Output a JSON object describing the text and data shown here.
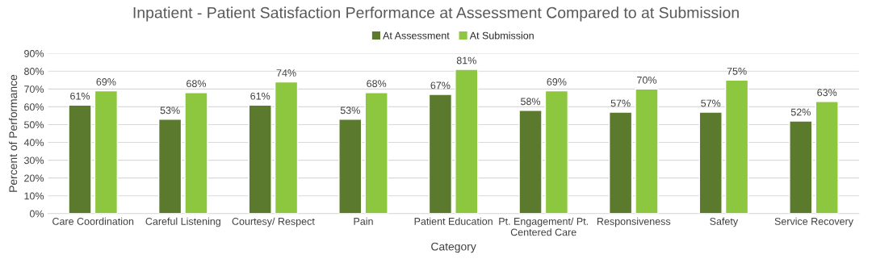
{
  "chart_data": {
    "type": "bar",
    "title": "Inpatient - Patient Satisfaction Performance at Assessment Compared to at Submission",
    "xlabel": "Category",
    "ylabel": "Percent of Performance",
    "categories": [
      "Care Coordination",
      "Careful Listening",
      "Courtesy/ Respect",
      "Pain",
      "Patient Education",
      "Pt. Engagement/ Pt.\nCentered Care",
      "Responsiveness",
      "Safety",
      "Service Recovery"
    ],
    "series": [
      {
        "name": "At Assessment",
        "color": "#5b7a2e",
        "values": [
          61,
          53,
          61,
          53,
          67,
          58,
          57,
          57,
          52
        ],
        "value_labels": [
          "61%",
          "53%",
          "61%",
          "53%",
          "67%",
          "58%",
          "57%",
          "57%",
          "52%"
        ]
      },
      {
        "name": "At Submission",
        "color": "#8dc63f",
        "values": [
          69,
          68,
          74,
          68,
          81,
          69,
          70,
          75,
          63
        ],
        "value_labels": [
          "69%",
          "68%",
          "74%",
          "68%",
          "81%",
          "69%",
          "70%",
          "75%",
          "63%"
        ]
      }
    ],
    "ylim": [
      0,
      90
    ],
    "yticks": [
      {
        "value": 0,
        "label": "0%"
      },
      {
        "value": 10,
        "label": "10%"
      },
      {
        "value": 20,
        "label": "20%"
      },
      {
        "value": 30,
        "label": "30%"
      },
      {
        "value": 40,
        "label": "40%"
      },
      {
        "value": 50,
        "label": "50%"
      },
      {
        "value": 60,
        "label": "60%"
      },
      {
        "value": 70,
        "label": "70%"
      },
      {
        "value": 80,
        "label": "80%"
      },
      {
        "value": 90,
        "label": "90%"
      }
    ],
    "grid": "y",
    "legend": "top"
  }
}
